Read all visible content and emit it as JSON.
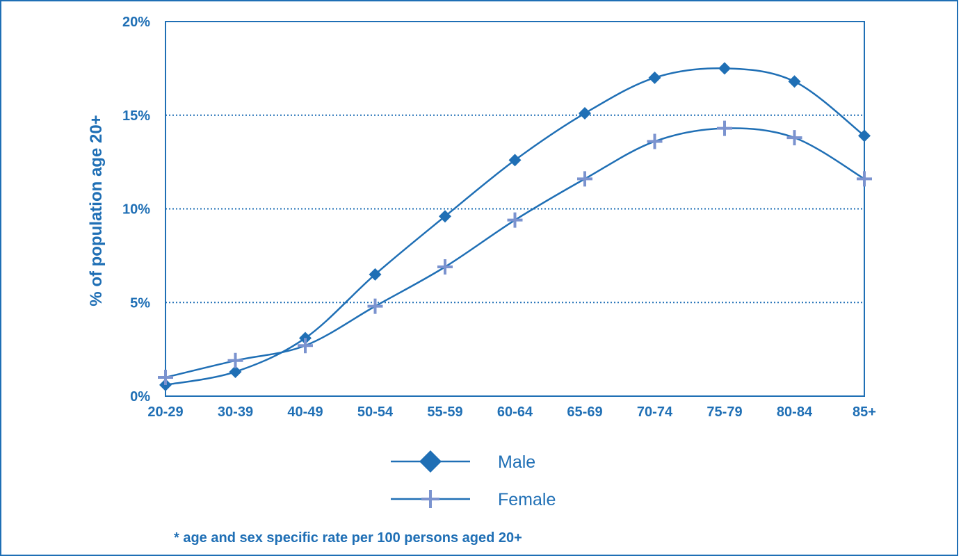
{
  "chart_data": {
    "type": "line",
    "categories": [
      "20-29",
      "30-39",
      "40-49",
      "50-54",
      "55-59",
      "60-64",
      "65-69",
      "70-74",
      "75-79",
      "80-84",
      "85+"
    ],
    "series": [
      {
        "name": "Male",
        "marker": "diamond",
        "color": "#1f6fb5",
        "values": [
          0.6,
          1.3,
          3.1,
          6.5,
          9.6,
          12.6,
          15.1,
          17.0,
          17.5,
          16.8,
          13.9
        ]
      },
      {
        "name": "Female",
        "marker": "plus",
        "color": "#7b93cf",
        "values": [
          1.0,
          1.9,
          2.7,
          4.8,
          6.9,
          9.4,
          11.6,
          13.6,
          14.3,
          13.8,
          11.6
        ]
      }
    ],
    "ylabel": "% of population age 20+",
    "ylim": [
      0,
      20
    ],
    "yticks": [
      "0%",
      "5%",
      "10%",
      "15%",
      "20%"
    ],
    "yticks_values": [
      0,
      5,
      10,
      15,
      20
    ],
    "grid": "horizontal dotted at 5%, 10%, 15%",
    "legend_position": "bottom-center"
  },
  "footnote": "* age and sex specific rate per 100 persons aged 20+"
}
